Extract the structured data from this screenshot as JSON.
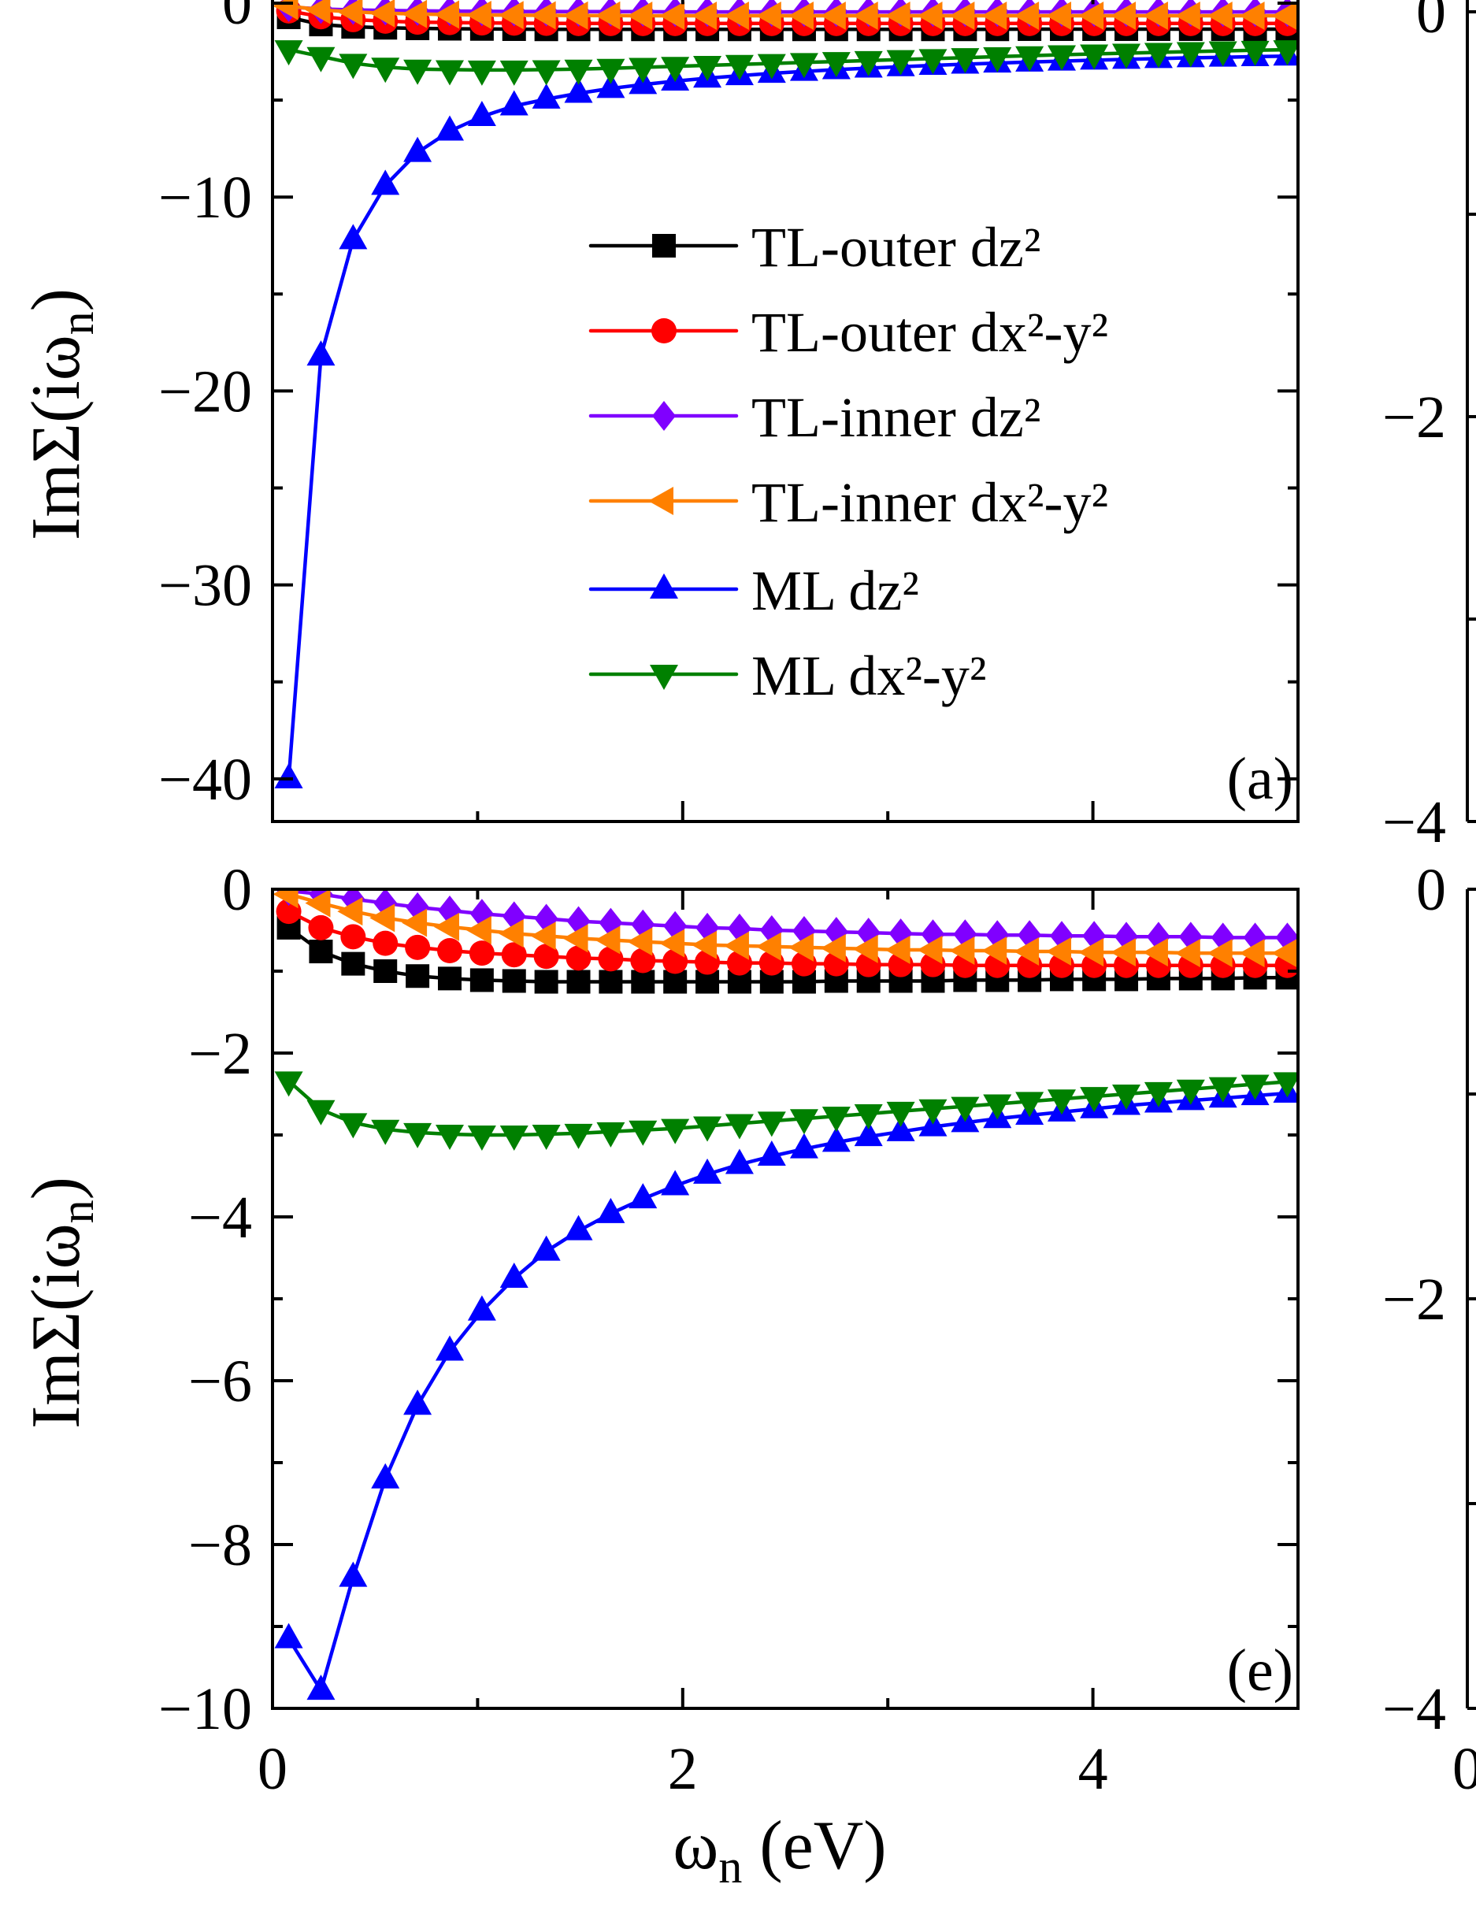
{
  "chart_data": [
    {
      "type": "line",
      "panel_label": "(a)",
      "ylabel": {
        "main": "ImΣ(iω",
        "sub": "n",
        "close": ")"
      },
      "xlim": [
        0,
        5
      ],
      "ylim": [
        -42.2,
        1
      ],
      "yticks": [
        {
          "value": 0,
          "label": "0"
        },
        {
          "value": -10,
          "label": "−10"
        },
        {
          "value": -20,
          "label": "−20"
        },
        {
          "value": -30,
          "label": "−30"
        },
        {
          "value": -40,
          "label": "−40"
        }
      ],
      "legend_position": "center",
      "x": [
        0.079,
        0.236,
        0.393,
        0.55,
        0.707,
        0.864,
        1.021,
        1.178,
        1.335,
        1.492,
        1.649,
        1.806,
        1.963,
        2.12,
        2.277,
        2.434,
        2.592,
        2.749,
        2.906,
        3.063,
        3.22,
        3.377,
        3.534,
        3.691,
        3.848,
        4.006,
        4.163,
        4.32,
        4.477,
        4.634,
        4.791,
        4.948
      ],
      "series": [
        {
          "name": "TL-outer dz²",
          "color": "#000000",
          "marker": "square",
          "values": [
            -0.73,
            -1.1,
            -1.22,
            -1.27,
            -1.3,
            -1.32,
            -1.33,
            -1.34,
            -1.35,
            -1.35,
            -1.35,
            -1.35,
            -1.35,
            -1.35,
            -1.35,
            -1.35,
            -1.35,
            -1.35,
            -1.35,
            -1.35,
            -1.35,
            -1.35,
            -1.35,
            -1.34,
            -1.34,
            -1.34,
            -1.34,
            -1.34,
            -1.34,
            -1.34,
            -1.34,
            -1.34
          ]
        },
        {
          "name": "TL-outer dx²-y²",
          "color": "#ff0000",
          "marker": "circle",
          "values": [
            -0.4,
            -0.7,
            -0.85,
            -0.93,
            -0.98,
            -1.0,
            -1.02,
            -1.03,
            -1.04,
            -1.05,
            -1.05,
            -1.05,
            -1.05,
            -1.05,
            -1.05,
            -1.05,
            -1.05,
            -1.05,
            -1.05,
            -1.05,
            -1.05,
            -1.05,
            -1.05,
            -1.05,
            -1.05,
            -1.05,
            -1.05,
            -1.05,
            -1.05,
            -1.05,
            -1.05,
            -1.05
          ]
        },
        {
          "name": "TL-inner dz²",
          "color": "#8000ff",
          "marker": "diamond",
          "values": [
            -0.2,
            -0.3,
            -0.35,
            -0.38,
            -0.4,
            -0.41,
            -0.42,
            -0.43,
            -0.43,
            -0.44,
            -0.44,
            -0.44,
            -0.45,
            -0.45,
            -0.45,
            -0.45,
            -0.45,
            -0.45,
            -0.45,
            -0.45,
            -0.45,
            -0.45,
            -0.45,
            -0.45,
            -0.45,
            -0.45,
            -0.45,
            -0.45,
            -0.45,
            -0.45,
            -0.45,
            -0.45
          ]
        },
        {
          "name": "TL-inner dx²-y²",
          "color": "#ff8000",
          "marker": "triangle-left",
          "values": [
            -0.15,
            -0.35,
            -0.45,
            -0.52,
            -0.56,
            -0.59,
            -0.61,
            -0.62,
            -0.63,
            -0.64,
            -0.64,
            -0.65,
            -0.65,
            -0.65,
            -0.65,
            -0.65,
            -0.65,
            -0.65,
            -0.65,
            -0.65,
            -0.65,
            -0.65,
            -0.65,
            -0.65,
            -0.65,
            -0.65,
            -0.65,
            -0.65,
            -0.65,
            -0.65,
            -0.65,
            -0.65
          ]
        },
        {
          "name": "ML dz²",
          "color": "#0000ff",
          "marker": "triangle-up",
          "values": [
            -40,
            -18.2,
            -12.2,
            -9.4,
            -7.7,
            -6.6,
            -5.85,
            -5.3,
            -4.95,
            -4.65,
            -4.4,
            -4.2,
            -4.02,
            -3.87,
            -3.74,
            -3.62,
            -3.52,
            -3.43,
            -3.35,
            -3.28,
            -3.21,
            -3.15,
            -3.09,
            -3.04,
            -2.99,
            -2.94,
            -2.9,
            -2.86,
            -2.82,
            -2.79,
            -2.76,
            -2.73
          ]
        },
        {
          "name": "ML dx²-y²",
          "color": "#008000",
          "marker": "triangle-down",
          "values": [
            -2.4,
            -2.75,
            -3.1,
            -3.3,
            -3.4,
            -3.43,
            -3.45,
            -3.45,
            -3.43,
            -3.4,
            -3.36,
            -3.31,
            -3.26,
            -3.21,
            -3.16,
            -3.11,
            -3.06,
            -3.01,
            -2.96,
            -2.91,
            -2.86,
            -2.81,
            -2.76,
            -2.71,
            -2.66,
            -2.62,
            -2.58,
            -2.54,
            -2.5,
            -2.46,
            -2.43,
            -2.4
          ]
        }
      ]
    },
    {
      "type": "line",
      "panel_label": "(e)",
      "ylabel": {
        "main": "ImΣ(iω",
        "sub": "n",
        "close": ")"
      },
      "xlabel": {
        "main": "ω",
        "sub": "n",
        "close": " (eV)"
      },
      "xlim": [
        0,
        5
      ],
      "ylim": [
        -10,
        0
      ],
      "xticks": [
        {
          "value": 0,
          "label": "0"
        },
        {
          "value": 2,
          "label": "2"
        },
        {
          "value": 4,
          "label": "4"
        }
      ],
      "yticks": [
        {
          "value": 0,
          "label": "0"
        },
        {
          "value": -2,
          "label": "−2"
        },
        {
          "value": -4,
          "label": "−4"
        },
        {
          "value": -6,
          "label": "−6"
        },
        {
          "value": -8,
          "label": "−8"
        },
        {
          "value": -10,
          "label": "−10"
        }
      ],
      "x": [
        0.079,
        0.236,
        0.393,
        0.55,
        0.707,
        0.864,
        1.021,
        1.178,
        1.335,
        1.492,
        1.649,
        1.806,
        1.963,
        2.12,
        2.277,
        2.434,
        2.592,
        2.749,
        2.906,
        3.063,
        3.22,
        3.377,
        3.534,
        3.691,
        3.848,
        4.006,
        4.163,
        4.32,
        4.477,
        4.634,
        4.791,
        4.948
      ],
      "series": [
        {
          "color": "#000000",
          "marker": "square",
          "values": [
            -0.47,
            -0.76,
            -0.91,
            -1.0,
            -1.06,
            -1.09,
            -1.11,
            -1.12,
            -1.13,
            -1.13,
            -1.13,
            -1.13,
            -1.13,
            -1.13,
            -1.13,
            -1.13,
            -1.13,
            -1.12,
            -1.12,
            -1.12,
            -1.12,
            -1.11,
            -1.11,
            -1.11,
            -1.1,
            -1.1,
            -1.1,
            -1.09,
            -1.09,
            -1.09,
            -1.08,
            -1.08
          ]
        },
        {
          "color": "#ff0000",
          "marker": "circle",
          "values": [
            -0.27,
            -0.47,
            -0.58,
            -0.66,
            -0.71,
            -0.75,
            -0.78,
            -0.8,
            -0.82,
            -0.84,
            -0.85,
            -0.87,
            -0.88,
            -0.89,
            -0.9,
            -0.9,
            -0.91,
            -0.91,
            -0.92,
            -0.92,
            -0.92,
            -0.93,
            -0.93,
            -0.93,
            -0.93,
            -0.93,
            -0.93,
            -0.93,
            -0.93,
            -0.93,
            -0.93,
            -0.93
          ]
        },
        {
          "color": "#8000ff",
          "marker": "diamond",
          "values": [
            -0.02,
            -0.06,
            -0.12,
            -0.17,
            -0.22,
            -0.26,
            -0.3,
            -0.33,
            -0.36,
            -0.39,
            -0.41,
            -0.43,
            -0.45,
            -0.47,
            -0.48,
            -0.5,
            -0.51,
            -0.52,
            -0.53,
            -0.54,
            -0.55,
            -0.55,
            -0.56,
            -0.56,
            -0.57,
            -0.57,
            -0.58,
            -0.58,
            -0.58,
            -0.59,
            -0.59,
            -0.59
          ]
        },
        {
          "color": "#ff8000",
          "marker": "triangle-left",
          "values": [
            -0.06,
            -0.17,
            -0.27,
            -0.35,
            -0.41,
            -0.46,
            -0.5,
            -0.54,
            -0.57,
            -0.6,
            -0.62,
            -0.64,
            -0.66,
            -0.68,
            -0.69,
            -0.7,
            -0.71,
            -0.72,
            -0.73,
            -0.74,
            -0.74,
            -0.75,
            -0.75,
            -0.76,
            -0.76,
            -0.77,
            -0.77,
            -0.77,
            -0.78,
            -0.78,
            -0.78,
            -0.78
          ]
        },
        {
          "color": "#0000ff",
          "marker": "triangle-up",
          "values": [
            -9.15,
            -9.78,
            -8.4,
            -7.2,
            -6.3,
            -5.64,
            -5.15,
            -4.75,
            -4.42,
            -4.17,
            -3.96,
            -3.78,
            -3.62,
            -3.48,
            -3.36,
            -3.26,
            -3.17,
            -3.09,
            -3.02,
            -2.96,
            -2.9,
            -2.85,
            -2.8,
            -2.76,
            -2.72,
            -2.68,
            -2.64,
            -2.61,
            -2.58,
            -2.55,
            -2.52,
            -2.49
          ]
        },
        {
          "color": "#008000",
          "marker": "triangle-down",
          "values": [
            -2.34,
            -2.69,
            -2.85,
            -2.93,
            -2.97,
            -2.99,
            -3.0,
            -3.0,
            -2.99,
            -2.98,
            -2.96,
            -2.94,
            -2.92,
            -2.89,
            -2.86,
            -2.83,
            -2.8,
            -2.77,
            -2.74,
            -2.71,
            -2.68,
            -2.65,
            -2.62,
            -2.59,
            -2.56,
            -2.53,
            -2.5,
            -2.47,
            -2.44,
            -2.41,
            -2.38,
            -2.35
          ]
        }
      ]
    }
  ],
  "right_panels": [
    {
      "ylim": [
        -4,
        0
      ],
      "yticks": [
        {
          "value": 0,
          "label": "0"
        },
        {
          "value": -2,
          "label": "−2"
        },
        {
          "value": -4,
          "label": "−4"
        }
      ]
    },
    {
      "ylim": [
        -4,
        0
      ],
      "yticks": [
        {
          "value": 0,
          "label": "0"
        },
        {
          "value": -2,
          "label": "−2"
        },
        {
          "value": -4,
          "label": "−4"
        }
      ],
      "xtick_label": "0"
    }
  ]
}
